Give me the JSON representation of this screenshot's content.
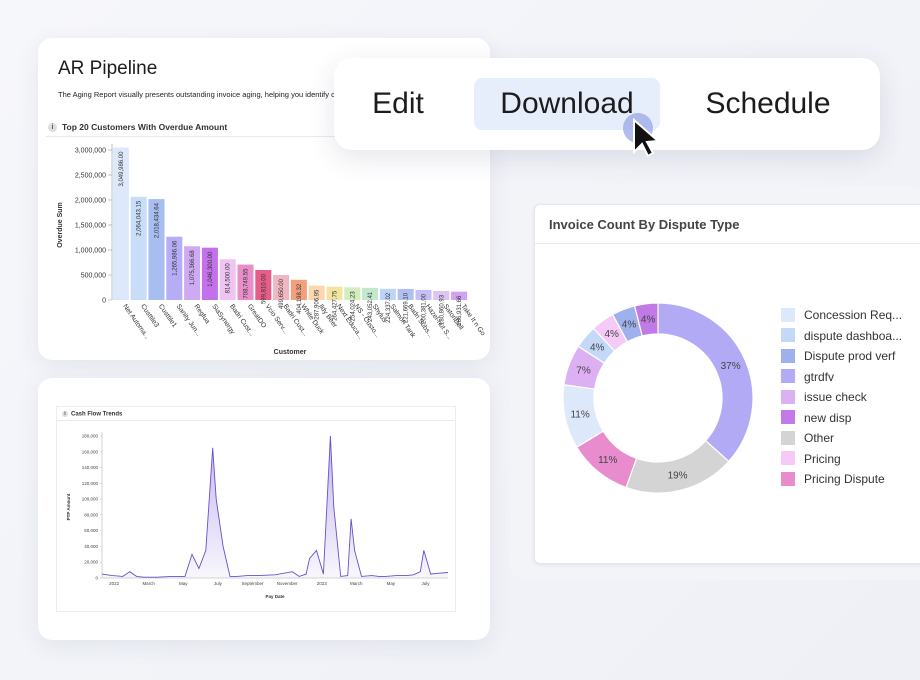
{
  "colors": {
    "accent": "#7a5ad6",
    "menu_highlight": "#e7eefb",
    "cursor_halo": "#9aa5e8"
  },
  "menu": {
    "edit_label": "Edit",
    "download_label": "Download",
    "schedule_label": "Schedule"
  },
  "ar_pipeline": {
    "title": "AR Pipeline",
    "description": "The Aging Report visually presents outstanding invoice aging, helping you identify c"
  },
  "chart_data": [
    {
      "type": "bar",
      "title": "Top 20 Customers With Overdue Amount",
      "xlabel": "Customer",
      "ylabel": "Overdue Sum",
      "ylim": [
        0,
        3000000
      ],
      "yticks": [
        "0",
        "500,000",
        "1,000,000",
        "1,500,000",
        "2,000,000",
        "2,500,000",
        "3,000,000"
      ],
      "categories": [
        "Net Automa...",
        "Custtile3",
        "Custtile1",
        "Sanity Jun...",
        "Regfua",
        "SiaSynergy",
        "Badri Cust...",
        "GreatDO",
        "Vcio Serv...",
        "Badri Cust...",
        "White Duck",
        "Ildy Beer",
        "Next Educa...",
        "NS - Custo...",
        "Shylus",
        "Salmon Tank",
        "Badri Subs...",
        "Hazel-nut S...",
        "SatoriDell",
        "Take It n Go"
      ],
      "values": [
        3049986,
        2064043.15,
        2018434.64,
        1265986.06,
        1075366.68,
        1046300,
        814500,
        708749.55,
        599810,
        499650,
        404198.32,
        287906.95,
        264427.75,
        254024.23,
        243052.41,
        224337.02,
        221669.1,
        200381,
        180860.93,
        166931.66
      ],
      "data_labels": [
        "3,049,986.00",
        "2,064,043.15",
        "2,018,434.64",
        "1,265,986.06",
        "1,075,366.68",
        "1,046,300.00",
        "814,500.00",
        "708,749.55",
        "599,810.00",
        "499,650.00",
        "404,198.32",
        "287,906.95",
        "264,427.75",
        "254,024.23",
        "243,052.41",
        "224,337.02",
        "221,669.10",
        "200,381.00",
        "180,860.93",
        "166,931.66"
      ],
      "bar_colors": [
        "#dde9fb",
        "#c8ddf8",
        "#a8bdf0",
        "#b5aef6",
        "#cfaaf3",
        "#c271ea",
        "#efc4f2",
        "#e98ec8",
        "#e55d88",
        "#f0b7c2",
        "#f2a07c",
        "#fbd7b1",
        "#f1e4a0",
        "#d2eebe",
        "#c2e9ce",
        "#bcd4f6",
        "#aebff0",
        "#c4c0f6",
        "#dcc5f2",
        "#d2a3ee"
      ]
    },
    {
      "type": "area",
      "title": "Cash Flow Trends",
      "xlabel": "Pay Date",
      "ylabel": "PTP Amount",
      "ylim": [
        0,
        180000
      ],
      "yticks": [
        "0",
        "20,000",
        "40,000",
        "60,000",
        "80,000",
        "100,000",
        "120,000",
        "140,000",
        "160,000",
        "180,000"
      ],
      "xticks": [
        "2022",
        "March",
        "May",
        "July",
        "September",
        "November",
        "2023",
        "March",
        "May",
        "July"
      ],
      "x": [
        0,
        0.03,
        0.06,
        0.08,
        0.1,
        0.12,
        0.16,
        0.2,
        0.24,
        0.26,
        0.28,
        0.3,
        0.32,
        0.33,
        0.35,
        0.37,
        0.39,
        0.42,
        0.45,
        0.5,
        0.55,
        0.57,
        0.59,
        0.6,
        0.62,
        0.64,
        0.66,
        0.67,
        0.69,
        0.71,
        0.72,
        0.73,
        0.75,
        0.78,
        0.8,
        0.82,
        0.85,
        0.88,
        0.9,
        0.92,
        0.93,
        0.95,
        0.97,
        1.0
      ],
      "y": [
        5000,
        3000,
        2000,
        8000,
        2000,
        1000,
        1000,
        2000,
        2000,
        30000,
        12000,
        35000,
        165000,
        100000,
        40000,
        2000,
        2000,
        3000,
        3000,
        4000,
        8000,
        2000,
        5000,
        25000,
        35000,
        5000,
        180000,
        90000,
        2000,
        3000,
        75000,
        35000,
        2000,
        3000,
        2000,
        2000,
        3000,
        3000,
        4000,
        8000,
        35000,
        5000,
        6000,
        7000
      ]
    },
    {
      "type": "pie",
      "title": "Invoice Count By Dispute Type",
      "legend": "right",
      "slices": [
        {
          "label": "gtrdfv",
          "value": 37,
          "color": "#b3aaf6",
          "label_text": "37%"
        },
        {
          "label": "Other",
          "value": 19,
          "color": "#d4d4d4",
          "label_text": "19%"
        },
        {
          "label": "Pricing Dispute",
          "value": 11,
          "color": "#e98cce",
          "label_text": "11%"
        },
        {
          "label": "Concession Req...",
          "value": 11,
          "color": "#dde8fb",
          "label_text": "11%"
        },
        {
          "label": "issue check",
          "value": 7,
          "color": "#dcb0f2",
          "label_text": "7%"
        },
        {
          "label": "dispute dashboa...",
          "value": 4,
          "color": "#c4d9f8",
          "label_text": "4%"
        },
        {
          "label": "Pricing",
          "value": 4,
          "color": "#f5caf6",
          "label_text": "4%"
        },
        {
          "label": "Dispute prod verf",
          "value": 4,
          "color": "#9fb1ec",
          "label_text": "4%"
        },
        {
          "label": "new disp",
          "value": 4,
          "color": "#c27ae6",
          "label_text": "4%"
        }
      ],
      "legend_items": [
        {
          "label": "Concession Req...",
          "color": "#dde8fb"
        },
        {
          "label": "dispute dashboa...",
          "color": "#c4d9f8"
        },
        {
          "label": "Dispute prod verf",
          "color": "#9fb1ec"
        },
        {
          "label": "gtrdfv",
          "color": "#b3aaf6"
        },
        {
          "label": "issue check",
          "color": "#dcb0f2"
        },
        {
          "label": "new disp",
          "color": "#c27ae6"
        },
        {
          "label": "Other",
          "color": "#d4d4d4"
        },
        {
          "label": "Pricing",
          "color": "#f5caf6"
        },
        {
          "label": "Pricing Dispute",
          "color": "#e98cce"
        }
      ]
    }
  ]
}
